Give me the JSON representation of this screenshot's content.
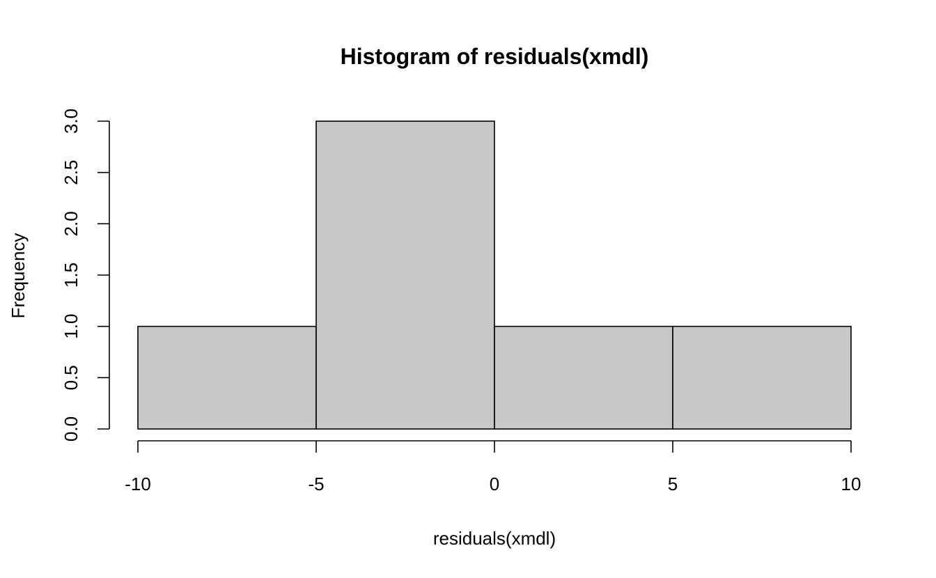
{
  "chart_data": {
    "type": "bar",
    "subtype": "histogram",
    "title": "Histogram of residuals(xmdl)",
    "xlabel": "residuals(xmdl)",
    "ylabel": "Frequency",
    "bins": [
      {
        "from": -10,
        "to": -5,
        "count": 1
      },
      {
        "from": -5,
        "to": 0,
        "count": 3
      },
      {
        "from": 0,
        "to": 5,
        "count": 1
      },
      {
        "from": 5,
        "to": 10,
        "count": 1
      }
    ],
    "xlim": [
      -10,
      10
    ],
    "ylim": [
      0,
      3
    ],
    "x_ticks": [
      -10,
      -5,
      0,
      5,
      10
    ],
    "x_tick_labels": [
      "-10",
      "-5",
      "0",
      "5",
      "10"
    ],
    "y_ticks": [
      0,
      0.5,
      1,
      1.5,
      2,
      2.5,
      3
    ],
    "y_tick_labels": [
      "0.0",
      "0.5",
      "1.0",
      "1.5",
      "2.0",
      "2.5",
      "3.0"
    ],
    "bar_color": "#c8c8c8",
    "grid": false,
    "legend": "none"
  }
}
